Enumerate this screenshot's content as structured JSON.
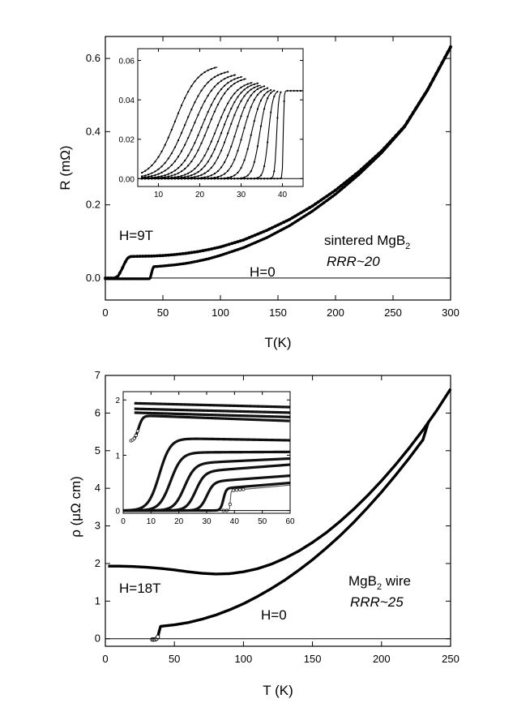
{
  "chart_data": [
    {
      "id": "top",
      "type": "line",
      "xlabel": "T(K)",
      "ylabel": "R (mΩ)",
      "xlim": [
        0,
        300
      ],
      "ylim": [
        -0.06,
        0.66
      ],
      "xticks": [
        "0",
        "50",
        "100",
        "150",
        "200",
        "250",
        "300"
      ],
      "xtick_values": [
        0,
        50,
        100,
        150,
        200,
        250,
        300
      ],
      "yticks": [
        "0.0",
        "0.2",
        "0.4",
        "0.6"
      ],
      "ytick_values": [
        0.0,
        0.2,
        0.4,
        0.6
      ],
      "annotations": {
        "field_high": "H=9T",
        "field_zero": "H=0",
        "sample_name": "sintered MgB",
        "sample_sub": "2",
        "rrr": "RRR~20"
      },
      "series": [
        {
          "name": "H=9T",
          "x": [
            0,
            8,
            11,
            14,
            17,
            19,
            21,
            23,
            30,
            40,
            50,
            60,
            70,
            80,
            90,
            100,
            120,
            140,
            160,
            180,
            200,
            220,
            240,
            260,
            280,
            300
          ],
          "y": [
            0.0,
            0.0,
            0.005,
            0.022,
            0.042,
            0.053,
            0.058,
            0.059,
            0.0595,
            0.06,
            0.0615,
            0.064,
            0.0675,
            0.072,
            0.078,
            0.085,
            0.104,
            0.13,
            0.16,
            0.197,
            0.24,
            0.29,
            0.347,
            0.415,
            0.515,
            0.632
          ]
        },
        {
          "name": "H=0",
          "x": [
            0,
            36,
            38,
            39,
            40,
            41,
            42,
            50,
            60,
            70,
            80,
            90,
            100,
            120,
            140,
            160,
            180,
            200,
            220,
            240,
            260,
            280,
            300
          ],
          "y": [
            -0.002,
            -0.002,
            -0.002,
            0.0,
            0.012,
            0.024,
            0.031,
            0.033,
            0.036,
            0.04,
            0.046,
            0.053,
            0.062,
            0.083,
            0.11,
            0.143,
            0.183,
            0.229,
            0.282,
            0.342,
            0.413,
            0.513,
            0.63
          ]
        }
      ],
      "inset": {
        "xlim": [
          5,
          45
        ],
        "ylim": [
          -0.004,
          0.066
        ],
        "xticks": [
          "10",
          "20",
          "30",
          "40"
        ],
        "xtick_values": [
          10,
          20,
          30,
          40
        ],
        "yticks": [
          "0.00",
          "0.02",
          "0.04",
          "0.06"
        ],
        "ytick_values": [
          0.0,
          0.02,
          0.04,
          0.06
        ],
        "plateau_x_end": 45,
        "curves": [
          {
            "tc": 40.2,
            "width": 0.4,
            "top": 0.0446
          },
          {
            "tc": 38.6,
            "width": 1.0,
            "top": 0.0447
          },
          {
            "tc": 36.6,
            "width": 2.2,
            "top": 0.045
          },
          {
            "tc": 34.5,
            "width": 3.5,
            "top": 0.0455
          },
          {
            "tc": 32.5,
            "width": 5.0,
            "top": 0.046
          },
          {
            "tc": 30.5,
            "width": 6.2,
            "top": 0.047
          },
          {
            "tc": 28.8,
            "width": 7.2,
            "top": 0.048
          },
          {
            "tc": 27.0,
            "width": 8.2,
            "top": 0.0485
          },
          {
            "tc": 25.5,
            "width": 9.0,
            "top": 0.0495
          },
          {
            "tc": 24.0,
            "width": 9.5,
            "top": 0.05
          },
          {
            "tc": 22.0,
            "width": 10.0,
            "top": 0.052
          },
          {
            "tc": 20.5,
            "width": 10.5,
            "top": 0.053
          },
          {
            "tc": 18.5,
            "width": 11.0,
            "top": 0.054
          },
          {
            "tc": 16.5,
            "width": 11.0,
            "top": 0.0555
          },
          {
            "tc": 14.0,
            "width": 11.0,
            "top": 0.058
          }
        ]
      }
    },
    {
      "id": "bottom",
      "type": "line",
      "xlabel": "T (K)",
      "ylabel": "ρ (μΩ cm)",
      "xlim": [
        0,
        250
      ],
      "ylim": [
        -0.2,
        7.0
      ],
      "xticks": [
        "0",
        "50",
        "100",
        "150",
        "200",
        "250"
      ],
      "xtick_values": [
        0,
        50,
        100,
        150,
        200,
        250
      ],
      "yticks": [
        "0",
        "1",
        "2",
        "3",
        "4",
        "5",
        "6",
        "7"
      ],
      "ytick_values": [
        0,
        1,
        2,
        3,
        4,
        5,
        6,
        7
      ],
      "annotations": {
        "field_high": "H=18T",
        "field_zero": "H=0",
        "sample_name": "MgB",
        "sample_sub": "2",
        "sample_rest": " wire",
        "rrr": "RRR~25"
      },
      "series": [
        {
          "name": "H=18T",
          "x": [
            2,
            10,
            20,
            30,
            40,
            50,
            60,
            70,
            80,
            90,
            100,
            110,
            120,
            130,
            140,
            150,
            160,
            170,
            180,
            190,
            200,
            210,
            220,
            230,
            240,
            250
          ],
          "y": [
            1.93,
            1.93,
            1.92,
            1.9,
            1.87,
            1.83,
            1.78,
            1.74,
            1.72,
            1.73,
            1.78,
            1.86,
            1.98,
            2.14,
            2.33,
            2.56,
            2.82,
            3.12,
            3.45,
            3.81,
            4.2,
            4.62,
            5.07,
            5.55,
            6.07,
            6.64
          ]
        },
        {
          "name": "H=0",
          "x": [
            34,
            36,
            37,
            38,
            39,
            40,
            50,
            60,
            70,
            80,
            90,
            100,
            110,
            120,
            130,
            140,
            150,
            160,
            170,
            180,
            190,
            200,
            210,
            220,
            230,
            234
          ],
          "y": [
            -0.02,
            -0.02,
            0.0,
            0.05,
            0.2,
            0.33,
            0.37,
            0.43,
            0.52,
            0.63,
            0.77,
            0.93,
            1.12,
            1.33,
            1.56,
            1.82,
            2.1,
            2.41,
            2.74,
            3.1,
            3.49,
            3.9,
            4.34,
            4.8,
            5.29,
            5.77
          ]
        }
      ],
      "inset": {
        "xlim": [
          0,
          60
        ],
        "ylim": [
          -0.05,
          2.15
        ],
        "xticks": [
          "0",
          "10",
          "20",
          "30",
          "40",
          "50",
          "60"
        ],
        "xtick_values": [
          0,
          10,
          20,
          30,
          40,
          50,
          60
        ],
        "yticks": [
          "0",
          "1",
          "2"
        ],
        "ytick_values": [
          0,
          1,
          2
        ],
        "curves": [
          {
            "kind": "flat",
            "start": 4,
            "y0": 1.94,
            "y1": 1.87
          },
          {
            "kind": "flat",
            "start": 4,
            "y0": 1.84,
            "y1": 1.77
          },
          {
            "kind": "flat",
            "start": 4,
            "y0": 1.77,
            "y1": 1.69
          },
          {
            "kind": "rise",
            "tc": 5.5,
            "width": 3.0,
            "top": 1.72,
            "y1": 1.62,
            "start": 2.8,
            "base": 1.25
          },
          {
            "kind": "step",
            "tc": 13.0,
            "width": 8.0,
            "top": 1.31,
            "y1": 1.27
          },
          {
            "kind": "step",
            "tc": 17.0,
            "width": 8.0,
            "top": 1.05,
            "y1": 1.06
          },
          {
            "kind": "step",
            "tc": 22.0,
            "width": 7.5,
            "top": 0.85,
            "y1": 0.94
          },
          {
            "kind": "step",
            "tc": 26.0,
            "width": 6.5,
            "top": 0.7,
            "y1": 0.83
          },
          {
            "kind": "step",
            "tc": 30.0,
            "width": 5.0,
            "top": 0.52,
            "y1": 0.63
          },
          {
            "kind": "step",
            "tc": 36.0,
            "width": 2.0,
            "top": 0.4,
            "y1": 0.5
          },
          {
            "kind": "sharp",
            "tc": 38.5,
            "width": 0.5,
            "top": 0.36,
            "y1": 0.46,
            "hollow": true
          }
        ]
      }
    }
  ]
}
